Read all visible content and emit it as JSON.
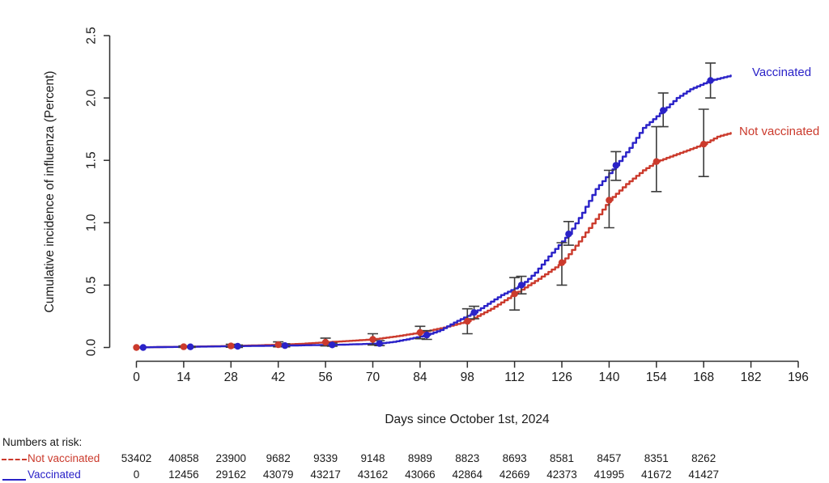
{
  "chart_data": {
    "type": "line",
    "subtype": "step-cumulative-incidence",
    "xlabel": "Days since October 1st, 2024",
    "ylabel": "Cumulative incidence of influenza (Percent)",
    "xlim": [
      0,
      196
    ],
    "ylim": [
      0,
      2.5
    ],
    "grid": false,
    "axis_color": "#2e2e2e",
    "error_bar_color": "#3c3c3c",
    "x_ticks": [
      0,
      14,
      28,
      42,
      56,
      70,
      84,
      98,
      112,
      126,
      140,
      154,
      168,
      182,
      196
    ],
    "x_tick_labels": [
      "0",
      "14",
      "28",
      "42",
      "56",
      "70",
      "84",
      "98",
      "112",
      "126",
      "140",
      "154",
      "168",
      "182",
      "196"
    ],
    "y_ticks": [
      0,
      0.5,
      1,
      1.5,
      2,
      2.5
    ],
    "y_tick_labels": [
      "0.0",
      "0.5",
      "1.0",
      "1.5",
      "2.0",
      "2.5"
    ],
    "series": [
      {
        "name": "Not vaccinated",
        "color": "#cb3a2c",
        "samples_day_pct": [
          [
            0,
            0
          ],
          [
            7,
            0.004
          ],
          [
            14,
            0.006
          ],
          [
            21,
            0.009
          ],
          [
            28,
            0.012
          ],
          [
            35,
            0.017
          ],
          [
            42,
            0.022
          ],
          [
            49,
            0.03
          ],
          [
            56,
            0.042
          ],
          [
            63,
            0.053
          ],
          [
            70,
            0.065
          ],
          [
            77,
            0.09
          ],
          [
            84,
            0.12
          ],
          [
            91,
            0.16
          ],
          [
            98,
            0.21
          ],
          [
            105,
            0.31
          ],
          [
            112,
            0.43
          ],
          [
            119,
            0.55
          ],
          [
            126,
            0.68
          ],
          [
            131,
            0.85
          ],
          [
            136,
            1.03
          ],
          [
            140,
            1.18
          ],
          [
            145,
            1.31
          ],
          [
            150,
            1.42
          ],
          [
            154,
            1.49
          ],
          [
            159,
            1.54
          ],
          [
            164,
            1.59
          ],
          [
            168,
            1.63
          ],
          [
            172,
            1.69
          ],
          [
            176,
            1.72
          ]
        ],
        "markers_day_val_lo_hi": [
          [
            0,
            0,
            0,
            0
          ],
          [
            14,
            0.006,
            0,
            0.012
          ],
          [
            28,
            0.012,
            0.002,
            0.025
          ],
          [
            42,
            0.022,
            0.005,
            0.045
          ],
          [
            56,
            0.042,
            0.012,
            0.075
          ],
          [
            70,
            0.065,
            0.02,
            0.11
          ],
          [
            84,
            0.12,
            0.07,
            0.17
          ],
          [
            98,
            0.21,
            0.11,
            0.31
          ],
          [
            112,
            0.43,
            0.3,
            0.56
          ],
          [
            126,
            0.68,
            0.5,
            0.84
          ],
          [
            140,
            1.18,
            0.96,
            1.42
          ],
          [
            154,
            1.49,
            1.25,
            1.77
          ],
          [
            168,
            1.63,
            1.37,
            1.91
          ]
        ]
      },
      {
        "name": "Vaccinated",
        "color": "#2a22c8",
        "samples_day_pct": [
          [
            0,
            0
          ],
          [
            6,
            0.003
          ],
          [
            14,
            0.005
          ],
          [
            22,
            0.008
          ],
          [
            28,
            0.01
          ],
          [
            36,
            0.013
          ],
          [
            44,
            0.015
          ],
          [
            50,
            0.018
          ],
          [
            58,
            0.021
          ],
          [
            64,
            0.025
          ],
          [
            72,
            0.032
          ],
          [
            76,
            0.045
          ],
          [
            80,
            0.065
          ],
          [
            86,
            0.1
          ],
          [
            90,
            0.14
          ],
          [
            94,
            0.2
          ],
          [
            100,
            0.28
          ],
          [
            104,
            0.35
          ],
          [
            108,
            0.42
          ],
          [
            114,
            0.5
          ],
          [
            118,
            0.6
          ],
          [
            122,
            0.73
          ],
          [
            128,
            0.91
          ],
          [
            132,
            1.08
          ],
          [
            136,
            1.27
          ],
          [
            142,
            1.46
          ],
          [
            146,
            1.6
          ],
          [
            150,
            1.76
          ],
          [
            156,
            1.9
          ],
          [
            160,
            2.0
          ],
          [
            164,
            2.07
          ],
          [
            170,
            2.14
          ],
          [
            173,
            2.16
          ],
          [
            176,
            2.18
          ]
        ],
        "markers_day_val_lo_hi": [
          [
            2,
            0,
            0,
            0
          ],
          [
            16,
            0.005,
            0,
            0.01
          ],
          [
            30,
            0.01,
            0,
            0.02
          ],
          [
            44,
            0.015,
            0.005,
            0.03
          ],
          [
            58,
            0.021,
            0.01,
            0.035
          ],
          [
            72,
            0.032,
            0.015,
            0.055
          ],
          [
            86,
            0.1,
            0.065,
            0.135
          ],
          [
            100,
            0.28,
            0.23,
            0.33
          ],
          [
            114,
            0.5,
            0.43,
            0.57
          ],
          [
            128,
            0.91,
            0.82,
            1.01
          ],
          [
            142,
            1.46,
            1.34,
            1.57
          ],
          [
            156,
            1.9,
            1.77,
            2.04
          ],
          [
            170,
            2.14,
            2.0,
            2.28
          ]
        ]
      }
    ],
    "legend": {
      "position": "right-of-curves",
      "entries": [
        {
          "text": "Vaccinated",
          "color": "#2a22c8"
        },
        {
          "text": "Not vaccinated",
          "color": "#cb3a2c"
        }
      ]
    }
  },
  "risk_table": {
    "header": "Numbers at risk:",
    "columns_days": [
      0,
      14,
      28,
      42,
      56,
      70,
      84,
      98,
      112,
      126,
      140,
      154,
      168
    ],
    "rows": [
      {
        "label": "Not vaccinated",
        "key_style": "dashed",
        "color": "#cb3a2c",
        "counts": [
          "53402",
          "40858",
          "23900",
          "9682",
          "9339",
          "9148",
          "8989",
          "8823",
          "8693",
          "8581",
          "8457",
          "8351",
          "8262"
        ]
      },
      {
        "label": "Vaccinated",
        "key_style": "solid",
        "color": "#2a22c8",
        "counts": [
          "0",
          "12456",
          "29162",
          "43079",
          "43217",
          "43162",
          "43066",
          "42864",
          "42669",
          "42373",
          "41995",
          "41672",
          "41427"
        ]
      }
    ]
  }
}
